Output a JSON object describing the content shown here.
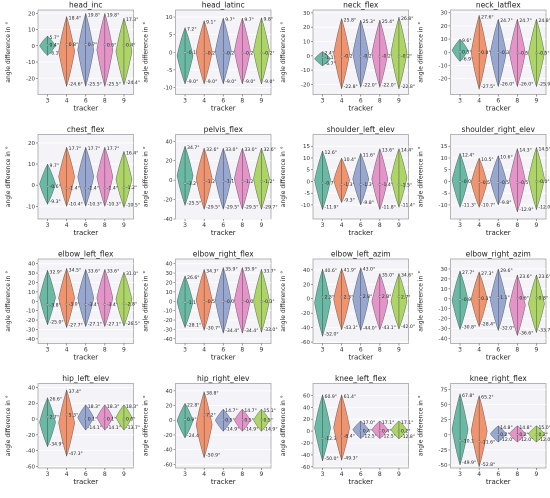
{
  "figure": {
    "xlabel": "tracker",
    "ylabel": "angle difference in °",
    "colors": [
      "#5ab39a",
      "#ee8a5f",
      "#8d9fcb",
      "#e289c2",
      "#a5d055"
    ]
  },
  "chart_data": [
    {
      "type": "violin",
      "title": "head_inc",
      "categories": [
        "3",
        "4",
        "6",
        "8",
        "9"
      ],
      "ylim": [
        -30,
        22
      ],
      "yticks": [
        -20,
        -10,
        0,
        10,
        20
      ],
      "series": [
        {
          "top": "5.7°",
          "mean": "0.4°",
          "bottom": "-6.1°",
          "max": 6,
          "min": -6,
          "c": 0
        },
        {
          "top": "18.4°",
          "mean": "0.8°",
          "bottom": "-24.6°",
          "max": 18,
          "min": -25,
          "c": 1
        },
        {
          "top": "19.8°",
          "mean": "0.7°",
          "bottom": "-25.5°",
          "max": 20,
          "min": -25,
          "c": 2
        },
        {
          "top": "19.8°",
          "mean": "0.6°",
          "bottom": "-25.5°",
          "max": 20,
          "min": -25,
          "c": 3
        },
        {
          "top": "17.3°",
          "mean": "0.4°",
          "bottom": "-24.4°",
          "max": 17,
          "min": -24,
          "c": 4
        }
      ]
    },
    {
      "type": "violin",
      "title": "head_latinc",
      "categories": [
        "3",
        "4",
        "6",
        "8",
        "9"
      ],
      "ylim": [
        -12,
        12
      ],
      "yticks": [
        -10,
        -5,
        0,
        5,
        10
      ],
      "series": [
        {
          "top": "7.2°",
          "mean": "-0.1°",
          "bottom": "-9.0°",
          "max": 7,
          "min": -9,
          "c": 0
        },
        {
          "top": "9.1°",
          "mean": "-0.2°",
          "bottom": "-9.0°",
          "max": 9,
          "min": -9,
          "c": 1
        },
        {
          "top": "9.7°",
          "mean": "-0.2°",
          "bottom": "-9.0°",
          "max": 9.7,
          "min": -9,
          "c": 2
        },
        {
          "top": "9.7°",
          "mean": "-0.2°",
          "bottom": "-9.0°",
          "max": 9.7,
          "min": -9,
          "c": 3
        },
        {
          "top": "9.8°",
          "mean": "-0.2°",
          "bottom": "-9.0°",
          "max": 9.8,
          "min": -9,
          "c": 4
        }
      ]
    },
    {
      "type": "violin",
      "title": "neck_flex",
      "categories": [
        "3",
        "4",
        "6",
        "8",
        "9"
      ],
      "ylim": [
        -27,
        32
      ],
      "yticks": [
        -20,
        -10,
        0,
        10,
        20,
        30
      ],
      "series": [
        {
          "top": "2.4°",
          "mean": "-1.1°",
          "bottom": "-6.7°",
          "max": 3,
          "min": -7,
          "c": 0
        },
        {
          "top": "25.8°",
          "mean": "-0.2°",
          "bottom": "-22.8°",
          "max": 26,
          "min": -23,
          "c": 1
        },
        {
          "top": "25.3°",
          "mean": "-0.2°",
          "bottom": "-22.0°",
          "max": 25,
          "min": -22,
          "c": 2
        },
        {
          "top": "25.4°",
          "mean": "-0.2°",
          "bottom": "-22.0°",
          "max": 25,
          "min": -22,
          "c": 3
        },
        {
          "top": "26.8°",
          "mean": "-0.2°",
          "bottom": "-22.8°",
          "max": 27,
          "min": -23,
          "c": 4
        }
      ]
    },
    {
      "type": "violin",
      "title": "neck_latflex",
      "categories": [
        "3",
        "4",
        "6",
        "8",
        "9"
      ],
      "ylim": [
        -32,
        32
      ],
      "yticks": [
        -20,
        -10,
        0,
        10,
        20,
        30
      ],
      "series": [
        {
          "top": "9.6°",
          "mean": "0.3°",
          "bottom": "-6.9°",
          "max": 10,
          "min": -7,
          "c": 0
        },
        {
          "top": "27.6°",
          "mean": "0.0°",
          "bottom": "-27.5°",
          "max": 28,
          "min": -28,
          "c": 1
        },
        {
          "top": "24.7°",
          "mean": "-0.3°",
          "bottom": "-26.0°",
          "max": 25,
          "min": -26,
          "c": 2
        },
        {
          "top": "24.7°",
          "mean": "-0.5°",
          "bottom": "-26.0°",
          "max": 25,
          "min": -26,
          "c": 3
        },
        {
          "top": "24.8°",
          "mean": "-0.5°",
          "bottom": "-25.9°",
          "max": 25,
          "min": -26,
          "c": 4
        }
      ]
    },
    {
      "type": "violin",
      "title": "chest_flex",
      "categories": [
        "3",
        "4",
        "6",
        "8",
        "9"
      ],
      "ylim": [
        -16,
        24
      ],
      "yticks": [
        -10,
        0,
        10,
        20
      ],
      "series": [
        {
          "top": "9.7°",
          "mean": "-0.6°",
          "bottom": "-9.3°",
          "max": 10,
          "min": -9,
          "c": 0
        },
        {
          "top": "17.7°",
          "mean": "-1.4°",
          "bottom": "-10.4°",
          "max": 18,
          "min": -10,
          "c": 1
        },
        {
          "top": "17.7°",
          "mean": "-1.4°",
          "bottom": "-10.3°",
          "max": 18,
          "min": -10,
          "c": 2
        },
        {
          "top": "17.7°",
          "mean": "-1.4°",
          "bottom": "-10.3°",
          "max": 18,
          "min": -10,
          "c": 3
        },
        {
          "top": "16.4°",
          "mean": "-1.2°",
          "bottom": "-10.5°",
          "max": 16,
          "min": -10.5,
          "c": 4
        }
      ]
    },
    {
      "type": "violin",
      "title": "pelvis_flex",
      "categories": [
        "3",
        "4",
        "6",
        "8",
        "9"
      ],
      "ylim": [
        -40,
        47
      ],
      "yticks": [
        -40,
        -20,
        0,
        20,
        40
      ],
      "series": [
        {
          "top": "34.7°",
          "mean": "-3.2°",
          "bottom": "-25.5°",
          "max": 35,
          "min": -26,
          "c": 0
        },
        {
          "top": "32.6°",
          "mean": "-1.2°",
          "bottom": "-29.5°",
          "max": 33,
          "min": -30,
          "c": 1
        },
        {
          "top": "33.0°",
          "mean": "-1.1°",
          "bottom": "-29.5°",
          "max": 33,
          "min": -30,
          "c": 2
        },
        {
          "top": "33.0°",
          "mean": "-1.2°",
          "bottom": "-29.5°",
          "max": 33,
          "min": -30,
          "c": 3
        },
        {
          "top": "32.6°",
          "mean": "-1.2°",
          "bottom": "-29.7°",
          "max": 33,
          "min": -30,
          "c": 4
        }
      ]
    },
    {
      "type": "violin",
      "title": "shoulder_left_elev",
      "categories": [
        "3",
        "4",
        "6",
        "8",
        "9"
      ],
      "ylim": [
        -16,
        20
      ],
      "yticks": [
        -10,
        -5,
        0,
        5,
        10,
        15
      ],
      "series": [
        {
          "top": "12.6°",
          "mean": "-0.7°",
          "bottom": "-11.9°",
          "max": 13,
          "min": -12,
          "c": 0
        },
        {
          "top": "10.4°",
          "mean": "-1.3°",
          "bottom": "-9.3°",
          "max": 10,
          "min": -9,
          "c": 1
        },
        {
          "top": "11.6°",
          "mean": "-1.3°",
          "bottom": "-9.8°",
          "max": 12,
          "min": -10,
          "c": 2
        },
        {
          "top": "13.6°",
          "mean": "-1.4°",
          "bottom": "-11.8°",
          "max": 14,
          "min": -12,
          "c": 3
        },
        {
          "top": "14.4°",
          "mean": "-1.5°",
          "bottom": "-11.4°",
          "max": 14,
          "min": -11,
          "c": 4
        }
      ]
    },
    {
      "type": "violin",
      "title": "shoulder_right_elev",
      "categories": [
        "3",
        "4",
        "6",
        "8",
        "9"
      ],
      "ylim": [
        -16,
        20
      ],
      "yticks": [
        -10,
        -5,
        0,
        5,
        10,
        15
      ],
      "series": [
        {
          "top": "12.4°",
          "mean": "-0.0°",
          "bottom": "-11.3°",
          "max": 12,
          "min": -11,
          "c": 0
        },
        {
          "top": "10.5°",
          "mean": "-0.5°",
          "bottom": "-10.7°",
          "max": 10,
          "min": -11,
          "c": 1
        },
        {
          "top": "10.6°",
          "mean": "-0.5°",
          "bottom": "-9.8°",
          "max": 11,
          "min": -10,
          "c": 2
        },
        {
          "top": "14.3°",
          "mean": "-0.5°",
          "bottom": "-12.9°",
          "max": 14,
          "min": -13,
          "c": 3
        },
        {
          "top": "14.5°",
          "mean": "-0.0°",
          "bottom": "-12.0°",
          "max": 14.5,
          "min": -12,
          "c": 4
        }
      ]
    },
    {
      "type": "violin",
      "title": "elbow_left_flex",
      "categories": [
        "3",
        "4",
        "6",
        "8",
        "9"
      ],
      "ylim": [
        -45,
        45
      ],
      "yticks": [
        -40,
        -30,
        -20,
        -10,
        0,
        10,
        20,
        30,
        40
      ],
      "series": [
        {
          "top": "32.9°",
          "mean": "-3.8°",
          "bottom": "-25.0°",
          "max": 33,
          "min": -25,
          "c": 0
        },
        {
          "top": "34.5°",
          "mean": "-3.0°",
          "bottom": "-27.7°",
          "max": 35,
          "min": -28,
          "c": 1
        },
        {
          "top": "33.6°",
          "mean": "-3.4°",
          "bottom": "-27.1°",
          "max": 34,
          "min": -27,
          "c": 2
        },
        {
          "top": "33.6°",
          "mean": "-3.4°",
          "bottom": "-27.1°",
          "max": 34,
          "min": -27,
          "c": 3
        },
        {
          "top": "31.0°",
          "mean": "-2.8°",
          "bottom": "-26.5°",
          "max": 31,
          "min": -26.5,
          "c": 4
        }
      ]
    },
    {
      "type": "violin",
      "title": "elbow_right_flex",
      "categories": [
        "3",
        "4",
        "6",
        "8",
        "9"
      ],
      "ylim": [
        -45,
        45
      ],
      "yticks": [
        -40,
        -30,
        -20,
        -10,
        0,
        10,
        20,
        30,
        40
      ],
      "series": [
        {
          "top": "26.6°",
          "mean": "-1.1°",
          "bottom": "-28.1°",
          "max": 27,
          "min": -28,
          "c": 0
        },
        {
          "top": "34.3°",
          "mean": "-0.5°",
          "bottom": "-30.7°",
          "max": 34,
          "min": -31,
          "c": 1
        },
        {
          "top": "35.9°",
          "mean": "-0.0°",
          "bottom": "-34.4°",
          "max": 36,
          "min": -34,
          "c": 2
        },
        {
          "top": "35.9°",
          "mean": "-0.0°",
          "bottom": "-34.4°",
          "max": 36,
          "min": -34,
          "c": 3
        },
        {
          "top": "33.7°",
          "mean": "-0.3°",
          "bottom": "-33.0°",
          "max": 34,
          "min": -33,
          "c": 4
        }
      ]
    },
    {
      "type": "violin",
      "title": "elbow_left_azim",
      "categories": [
        "3",
        "4",
        "6",
        "8",
        "9"
      ],
      "ylim": [
        -62,
        55
      ],
      "yticks": [
        -60,
        -40,
        -20,
        0,
        20,
        40
      ],
      "series": [
        {
          "top": "40.6°",
          "mean": "2.3°",
          "bottom": "-52.0°",
          "max": 41,
          "min": -52,
          "c": 0
        },
        {
          "top": "41.9°",
          "mean": "2.3°",
          "bottom": "-43.3°",
          "max": 42,
          "min": -43,
          "c": 1
        },
        {
          "top": "43.0°",
          "mean": "2.8°",
          "bottom": "-44.0°",
          "max": 43,
          "min": -44,
          "c": 2
        },
        {
          "top": "35.0°",
          "mean": "2.8°",
          "bottom": "-43.1°",
          "max": 35,
          "min": -43,
          "c": 3
        },
        {
          "top": "34.6°",
          "mean": "2.7°",
          "bottom": "-42.0°",
          "max": 35,
          "min": -42,
          "c": 4
        }
      ]
    },
    {
      "type": "violin",
      "title": "elbow_right_azim",
      "categories": [
        "3",
        "4",
        "6",
        "8",
        "9"
      ],
      "ylim": [
        -45,
        40
      ],
      "yticks": [
        -40,
        -30,
        -20,
        -10,
        0,
        10,
        20,
        30
      ],
      "series": [
        {
          "top": "27.7°",
          "mean": "-0.9°",
          "bottom": "-30.8°",
          "max": 28,
          "min": -31,
          "c": 0
        },
        {
          "top": "27.3°",
          "mean": "0.3°",
          "bottom": "-28.4°",
          "max": 27,
          "min": -28,
          "c": 1
        },
        {
          "top": "29.6°",
          "mean": "1.1°",
          "bottom": "-32.0°",
          "max": 30,
          "min": -32,
          "c": 2
        },
        {
          "top": "23.6°",
          "mean": "0.6°",
          "bottom": "-36.6°",
          "max": 24,
          "min": -37,
          "c": 3
        },
        {
          "top": "23.6°",
          "mean": "0.8°",
          "bottom": "-33.7°",
          "max": 24,
          "min": -34,
          "c": 4
        }
      ]
    },
    {
      "type": "violin",
      "title": "hip_left_elev",
      "categories": [
        "3",
        "4",
        "6",
        "8",
        "9"
      ],
      "ylim": [
        -62,
        45
      ],
      "yticks": [
        -60,
        -40,
        -20,
        0,
        20,
        40
      ],
      "series": [
        {
          "top": "26.6°",
          "mean": "2.7°",
          "bottom": "-34.9°",
          "max": 27,
          "min": -35,
          "c": 0
        },
        {
          "top": "37.4°",
          "mean": "5.3°",
          "bottom": "-47.3°",
          "max": 37,
          "min": -47,
          "c": 1
        },
        {
          "top": "18.3°",
          "mean": "0.1°",
          "bottom": "-14.1°",
          "max": 18,
          "min": -14,
          "c": 2
        },
        {
          "top": "18.3°",
          "mean": "0.1°",
          "bottom": "-14.1°",
          "max": 18,
          "min": -14,
          "c": 3
        },
        {
          "top": "18.3°",
          "mean": "0.0°",
          "bottom": "-13.7°",
          "max": 18,
          "min": -14,
          "c": 4
        }
      ]
    },
    {
      "type": "violin",
      "title": "hip_right_elev",
      "categories": [
        "3",
        "4",
        "6",
        "8",
        "9"
      ],
      "ylim": [
        -65,
        50
      ],
      "yticks": [
        -60,
        -40,
        -20,
        0,
        20,
        40
      ],
      "series": [
        {
          "top": "22.8°",
          "mean": "0.9°",
          "bottom": "-24.4°",
          "max": 23,
          "min": -24,
          "c": 0
        },
        {
          "top": "38.8°",
          "mean": "7.2°",
          "bottom": "-50.9°",
          "max": 39,
          "min": -51,
          "c": 1
        },
        {
          "top": "14.7°",
          "mean": "0.5°",
          "bottom": "-14.9°",
          "max": 15,
          "min": -15,
          "c": 2
        },
        {
          "top": "14.7°",
          "mean": "0.5°",
          "bottom": "-14.9°",
          "max": 15,
          "min": -15,
          "c": 3
        },
        {
          "top": "15.1°",
          "mean": "0.5°",
          "bottom": "-14.9°",
          "max": 15,
          "min": -15,
          "c": 4
        }
      ]
    },
    {
      "type": "violin",
      "title": "knee_left_flex",
      "categories": [
        "3",
        "4",
        "6",
        "8",
        "9"
      ],
      "ylim": [
        -62,
        80
      ],
      "yticks": [
        -60,
        -40,
        -20,
        0,
        20,
        40,
        60
      ],
      "series": [
        {
          "top": "60.9°",
          "mean": "-12.3°",
          "bottom": "-50.0°",
          "max": 61,
          "min": -50,
          "c": 0
        },
        {
          "top": "61.4°",
          "mean": "-8.4°",
          "bottom": "-49.3°",
          "max": 61,
          "min": -49,
          "c": 1
        },
        {
          "top": "17.0°",
          "mean": "0.4°",
          "bottom": "-12.5°",
          "max": 17,
          "min": -12.5,
          "c": 2
        },
        {
          "top": "17.1°",
          "mean": "0.4°",
          "bottom": "-12.5°",
          "max": 17,
          "min": -12.5,
          "c": 3
        },
        {
          "top": "17.1°",
          "mean": "0.2°",
          "bottom": "-12.8°",
          "max": 17,
          "min": -13,
          "c": 4
        }
      ]
    },
    {
      "type": "violin",
      "title": "knee_right_flex",
      "categories": [
        "3",
        "4",
        "6",
        "8",
        "9"
      ],
      "ylim": [
        -55,
        85
      ],
      "yticks": [
        -50,
        -25,
        0,
        25,
        50,
        75
      ],
      "series": [
        {
          "top": "67.8°",
          "mean": "-10.1°",
          "bottom": "-49.9°",
          "max": 68,
          "min": -50,
          "c": 0
        },
        {
          "top": "65.2°",
          "mean": "-11.6°",
          "bottom": "-52.8°",
          "max": 65,
          "min": -53,
          "c": 1
        },
        {
          "top": "14.8°",
          "mean": "0.2°",
          "bottom": "-12.0°",
          "max": 15,
          "min": -12,
          "c": 2
        },
        {
          "top": "14.8°",
          "mean": "0.2°",
          "bottom": "-12.0°",
          "max": 15,
          "min": -12,
          "c": 3
        },
        {
          "top": "15.0°",
          "mean": "0.2°",
          "bottom": "-12.0°",
          "max": 15,
          "min": -12,
          "c": 4
        }
      ]
    }
  ]
}
